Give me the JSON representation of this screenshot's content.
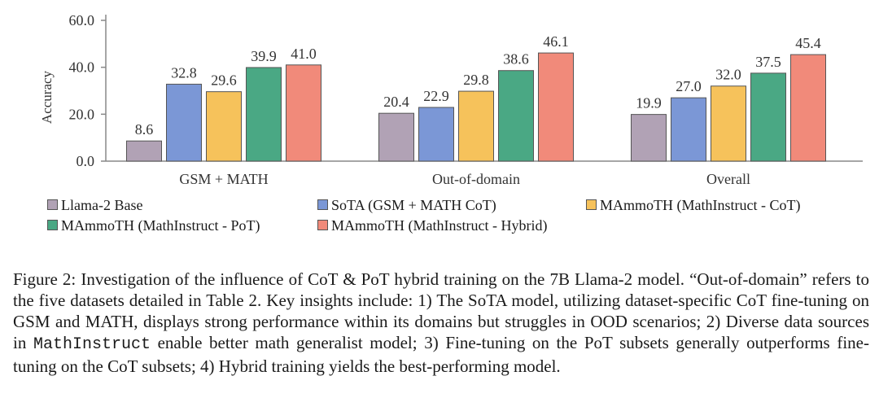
{
  "chart_data": {
    "type": "bar",
    "ylabel": "Accuracy",
    "xlabel": "",
    "ylim": [
      0,
      60
    ],
    "yticks": [
      "0.0",
      "20.0",
      "40.0",
      "60.0"
    ],
    "categories": [
      "GSM + MATH",
      "Out-of-domain",
      "Overall"
    ],
    "series": [
      {
        "name": "Llama-2 Base",
        "color": "#b1a2b5",
        "values": [
          8.6,
          20.4,
          19.9
        ]
      },
      {
        "name": "SoTA (GSM + MATH CoT)",
        "color": "#7b97d6",
        "values": [
          32.8,
          22.9,
          27.0
        ]
      },
      {
        "name": "MAmmoTH (MathInstruct - CoT)",
        "color": "#f6c25b",
        "values": [
          29.6,
          29.8,
          32.0
        ]
      },
      {
        "name": "MAmmoTH (MathInstruct - PoT)",
        "color": "#4aa884",
        "values": [
          39.9,
          38.6,
          37.5
        ]
      },
      {
        "name": "MAmmoTH (MathInstruct - Hybrid)",
        "color": "#f18a7a",
        "values": [
          41.0,
          46.1,
          45.4
        ]
      }
    ],
    "grid": false,
    "legend_position": "bottom"
  },
  "caption": {
    "text_1": "Figure 2: Investigation of the influence of CoT & PoT hybrid training on the 7B Llama-2 model. “Out-of-domain” refers to the five datasets detailed in Table 2. Key insights include: 1) The SoTA model, utilizing dataset-specific CoT fine-tuning on GSM and MATH, displays strong performance within its domains but struggles in OOD scenarios; 2) Diverse data sources in ",
    "mono": "MathInstruct",
    "text_2": " enable better math generalist model; 3) Fine-tuning on the PoT subsets generally outperforms fine-tuning on the CoT subsets; 4) Hybrid training yields the best-performing model."
  }
}
